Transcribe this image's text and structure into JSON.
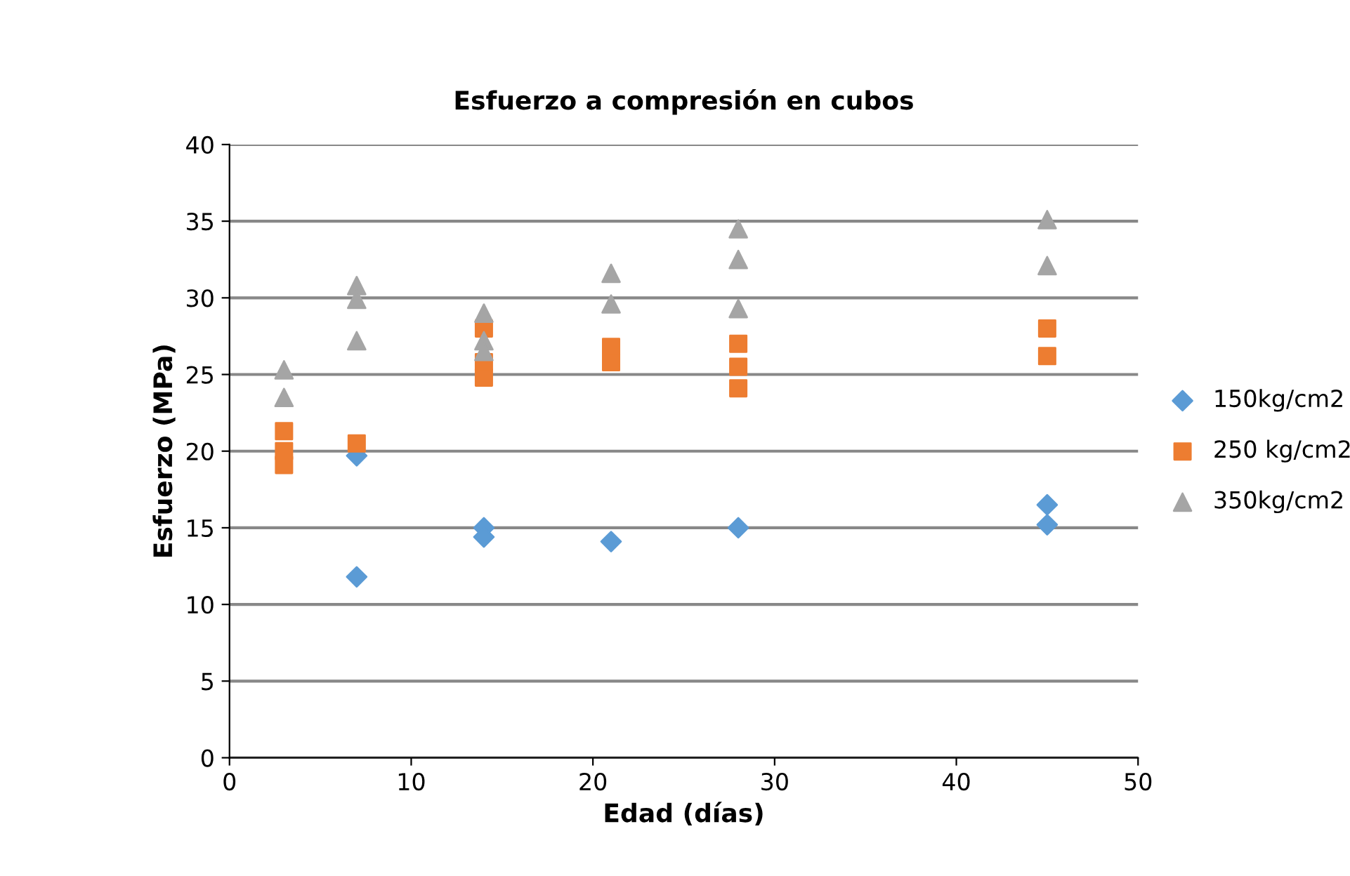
{
  "chart_data": {
    "type": "scatter",
    "title": "Esfuerzo a compresión en cubos",
    "xlabel": "Edad (días)",
    "ylabel": "Esfuerzo (MPa)",
    "xlim": [
      0,
      50
    ],
    "xticks": [
      0,
      10,
      20,
      30,
      40,
      50
    ],
    "ylim": [
      0,
      40
    ],
    "yticks": [
      0,
      5,
      10,
      15,
      20,
      25,
      30,
      35,
      40
    ],
    "grid": "y",
    "legend": "right",
    "series": [
      {
        "name": "150kg/cm2",
        "color": "#5b9bd5",
        "marker": "diamond",
        "x": [
          7,
          7,
          14,
          14,
          21,
          28,
          45,
          45
        ],
        "values": [
          19.7,
          11.8,
          15.0,
          14.4,
          14.1,
          15.0,
          16.5,
          15.2
        ]
      },
      {
        "name": "250 kg/cm2",
        "color": "#ed7d31",
        "marker": "square",
        "x": [
          3,
          3,
          3,
          7,
          14,
          14,
          14,
          21,
          21,
          28,
          28,
          28,
          45,
          45
        ],
        "values": [
          21.3,
          20.0,
          19.1,
          20.5,
          28.0,
          25.8,
          24.8,
          26.8,
          25.8,
          27.0,
          25.5,
          24.1,
          28.0,
          26.2
        ]
      },
      {
        "name": "350kg/cm2",
        "color": "#a5a5a5",
        "marker": "triangle",
        "x": [
          3,
          3,
          7,
          7,
          7,
          14,
          14,
          14,
          21,
          21,
          28,
          28,
          28,
          45,
          45
        ],
        "values": [
          25.3,
          23.5,
          30.8,
          29.9,
          27.2,
          29.0,
          27.2,
          26.5,
          31.6,
          29.6,
          34.5,
          32.5,
          29.3,
          35.1,
          32.1
        ]
      }
    ]
  }
}
